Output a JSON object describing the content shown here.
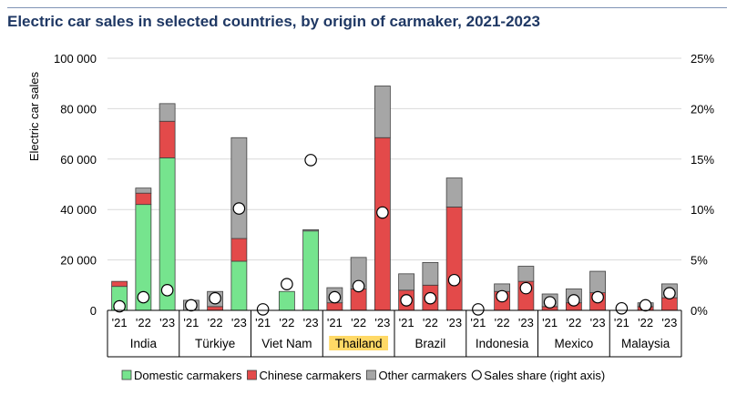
{
  "title": "Electric car sales in selected countries, by origin of carmaker, 2021-2023",
  "colors": {
    "title": "#1f3864",
    "domestic": "#76e48e",
    "chinese": "#e34a4a",
    "other": "#a6a6a6",
    "highlight": "#ffd966"
  },
  "chart_data": {
    "type": "bar",
    "stacked": true,
    "title": "Electric car sales in selected countries, by origin of carmaker, 2021-2023",
    "ylabel": "Electric car sales",
    "ylim": [
      0,
      100000
    ],
    "yticks": [
      "0",
      "20 000",
      "40 000",
      "60 000",
      "80 000",
      "100 000"
    ],
    "yticks_values": [
      0,
      20000,
      40000,
      60000,
      80000,
      100000
    ],
    "y2lim": [
      0,
      25
    ],
    "y2ticks": [
      "0%",
      "5%",
      "10%",
      "15%",
      "20%",
      "25%"
    ],
    "y2ticks_values": [
      0,
      5,
      10,
      15,
      20,
      25
    ],
    "grid": true,
    "legend_position": "bottom",
    "year_labels": [
      "'21",
      "'22",
      "'23"
    ],
    "countries": [
      {
        "name": "India",
        "highlight": false,
        "domestic": [
          9500,
          42000,
          60500
        ],
        "chinese": [
          2000,
          4500,
          14500
        ],
        "other": [
          0,
          2000,
          7000
        ],
        "share": [
          0.4,
          1.3,
          2.0
        ]
      },
      {
        "name": "Türkiye",
        "highlight": false,
        "domestic": [
          0,
          0,
          19500
        ],
        "chinese": [
          0,
          1500,
          9000
        ],
        "other": [
          4000,
          6000,
          40000
        ],
        "share": [
          0.5,
          1.2,
          10.1
        ]
      },
      {
        "name": "Viet Nam",
        "highlight": false,
        "domestic": [
          0,
          7500,
          31500
        ],
        "chinese": [
          0,
          0,
          0
        ],
        "other": [
          0,
          0,
          500
        ],
        "share": [
          0.1,
          2.6,
          14.9
        ]
      },
      {
        "name": "Thailand",
        "highlight": true,
        "domestic": [
          0,
          0,
          0
        ],
        "chinese": [
          3000,
          8500,
          68500
        ],
        "other": [
          6000,
          12500,
          20500
        ],
        "share": [
          1.3,
          2.4,
          9.7
        ]
      },
      {
        "name": "Brazil",
        "highlight": false,
        "domestic": [
          0,
          0,
          0
        ],
        "chinese": [
          8000,
          10000,
          41000
        ],
        "other": [
          6500,
          9000,
          11500
        ],
        "share": [
          1.0,
          1.2,
          3.0
        ]
      },
      {
        "name": "Indonesia",
        "highlight": false,
        "domestic": [
          0,
          0,
          0
        ],
        "chinese": [
          0,
          7500,
          11500
        ],
        "other": [
          0,
          3000,
          6000
        ],
        "share": [
          0.1,
          1.4,
          2.2
        ]
      },
      {
        "name": "Mexico",
        "highlight": false,
        "domestic": [
          0,
          0,
          0
        ],
        "chinese": [
          1500,
          3000,
          7000
        ],
        "other": [
          5000,
          5500,
          8500
        ],
        "share": [
          0.8,
          1.0,
          1.3
        ]
      },
      {
        "name": "Malaysia",
        "highlight": false,
        "domestic": [
          0,
          0,
          0
        ],
        "chinese": [
          0,
          1500,
          5000
        ],
        "other": [
          0,
          1500,
          5500
        ],
        "share": [
          0.2,
          0.5,
          1.7
        ]
      }
    ],
    "series": [
      {
        "name": "Domestic carmakers",
        "key": "domestic"
      },
      {
        "name": "Chinese carmakers",
        "key": "chinese"
      },
      {
        "name": "Other carmakers",
        "key": "other"
      },
      {
        "name": "Sales share (right axis)",
        "key": "share"
      }
    ]
  }
}
